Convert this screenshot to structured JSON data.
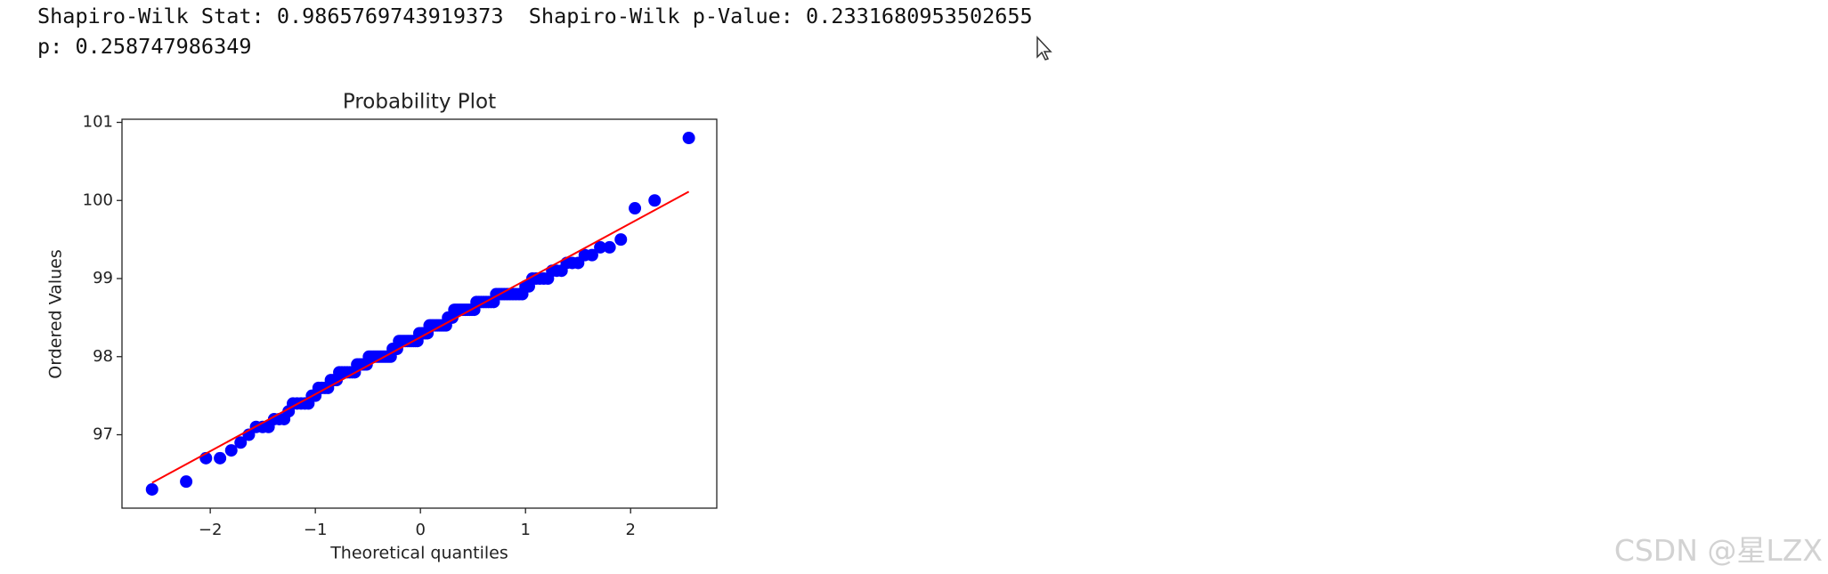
{
  "output_lines": [
    "Shapiro-Wilk Stat: 0.9865769743919373  Shapiro-Wilk p-Value: 0.2331680953502655",
    "p: 0.258747986349"
  ],
  "watermark": "CSDN @星LZX",
  "chart_data": {
    "type": "scatter",
    "title": "Probability Plot",
    "x_label": "Theoretical quantiles",
    "y_label": "Ordered Values",
    "color": "#0000ff",
    "x": [
      -2.554,
      -2.229,
      -2.041,
      -1.907,
      -1.8,
      -1.711,
      -1.633,
      -1.564,
      -1.501,
      -1.445,
      -1.392,
      -1.343,
      -1.297,
      -1.254,
      -1.213,
      -1.174,
      -1.136,
      -1.1,
      -1.066,
      -1.032,
      -1,
      -0.969,
      -0.939,
      -0.909,
      -0.88,
      -0.852,
      -0.825,
      -0.798,
      -0.772,
      -0.747,
      -0.721,
      -0.697,
      -0.672,
      -0.648,
      -0.625,
      -0.602,
      -0.579,
      -0.556,
      -0.534,
      -0.512,
      -0.49,
      -0.469,
      -0.447,
      -0.426,
      -0.405,
      -0.384,
      -0.364,
      -0.343,
      -0.323,
      -0.303,
      -0.283,
      -0.263,
      -0.243,
      -0.223,
      -0.203,
      -0.184,
      -0.164,
      -0.145,
      -0.125,
      -0.106,
      -0.087,
      -0.067,
      -0.048,
      -0.029,
      -0.01,
      0.01,
      0.029,
      0.048,
      0.067,
      0.087,
      0.106,
      0.125,
      0.145,
      0.164,
      0.184,
      0.203,
      0.223,
      0.243,
      0.263,
      0.283,
      0.303,
      0.323,
      0.343,
      0.364,
      0.384,
      0.405,
      0.426,
      0.447,
      0.469,
      0.49,
      0.512,
      0.534,
      0.556,
      0.579,
      0.602,
      0.625,
      0.648,
      0.672,
      0.697,
      0.721,
      0.747,
      0.772,
      0.798,
      0.825,
      0.852,
      0.88,
      0.909,
      0.939,
      0.969,
      1,
      1.032,
      1.066,
      1.1,
      1.136,
      1.174,
      1.213,
      1.254,
      1.297,
      1.343,
      1.392,
      1.445,
      1.501,
      1.564,
      1.633,
      1.711,
      1.8,
      1.907,
      2.041,
      2.229,
      2.554
    ],
    "values": [
      96.3,
      96.4,
      96.7,
      96.7,
      96.8,
      96.9,
      97.0,
      97.1,
      97.1,
      97.1,
      97.2,
      97.2,
      97.2,
      97.3,
      97.4,
      97.4,
      97.4,
      97.4,
      97.4,
      97.5,
      97.5,
      97.6,
      97.6,
      97.6,
      97.6,
      97.7,
      97.7,
      97.7,
      97.8,
      97.8,
      97.8,
      97.8,
      97.8,
      97.8,
      97.8,
      97.9,
      97.9,
      97.9,
      97.9,
      97.9,
      98.0,
      98.0,
      98.0,
      98.0,
      98.0,
      98.0,
      98.0,
      98.0,
      98.0,
      98.0,
      98.0,
      98.1,
      98.1,
      98.1,
      98.2,
      98.2,
      98.2,
      98.2,
      98.2,
      98.2,
      98.2,
      98.2,
      98.2,
      98.2,
      98.3,
      98.3,
      98.3,
      98.3,
      98.3,
      98.4,
      98.4,
      98.4,
      98.4,
      98.4,
      98.4,
      98.4,
      98.4,
      98.4,
      98.5,
      98.5,
      98.5,
      98.6,
      98.6,
      98.6,
      98.6,
      98.6,
      98.6,
      98.6,
      98.6,
      98.6,
      98.6,
      98.7,
      98.7,
      98.7,
      98.7,
      98.7,
      98.7,
      98.7,
      98.7,
      98.8,
      98.8,
      98.8,
      98.8,
      98.8,
      98.8,
      98.8,
      98.8,
      98.8,
      98.8,
      98.9,
      98.9,
      99.0,
      99.0,
      99.0,
      99.0,
      99.0,
      99.1,
      99.1,
      99.1,
      99.2,
      99.2,
      99.2,
      99.3,
      99.3,
      99.4,
      99.4,
      99.5,
      99.9,
      100.0,
      100.8
    ],
    "fit_line": {
      "x": [
        -2.554,
        2.554
      ],
      "values": [
        96.385,
        100.113
      ],
      "color": "#ff0000"
    },
    "xlim": [
      -2.84,
      2.82
    ],
    "ylim": [
      96.06,
      101.04
    ],
    "xticks": [
      {
        "value": -2,
        "label": "−2"
      },
      {
        "value": -1,
        "label": "−1"
      },
      0,
      1,
      2
    ],
    "yticks": [
      97,
      98,
      99,
      100,
      101
    ]
  }
}
